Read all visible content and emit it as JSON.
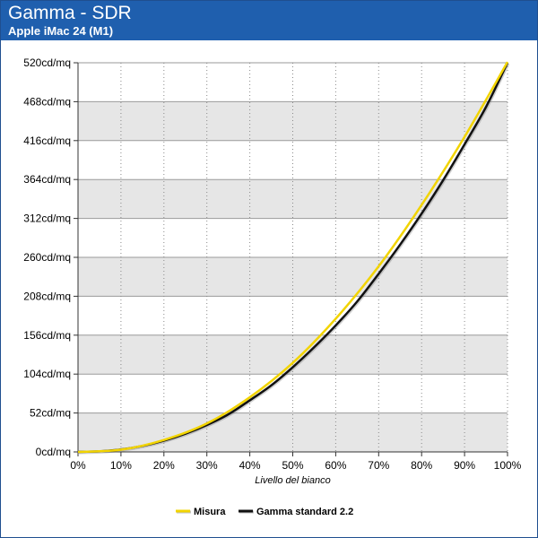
{
  "header": {
    "title": "Gamma - SDR",
    "subtitle": "Apple iMac 24 (M1)"
  },
  "colors": {
    "header_bg": "#1f5fae",
    "band": "#e6e6e6",
    "measure": "#f2d400",
    "standard": "#111111"
  },
  "chart_data": {
    "type": "line",
    "title": "Gamma - SDR",
    "subtitle": "Apple iMac 24 (M1)",
    "xlabel": "Livello del bianco",
    "ylabel": "",
    "xlim": [
      0,
      100
    ],
    "ylim": [
      0,
      520
    ],
    "x_ticks": [
      0,
      10,
      20,
      30,
      40,
      50,
      60,
      70,
      80,
      90,
      100
    ],
    "x_tick_labels": [
      "0%",
      "10%",
      "20%",
      "30%",
      "40%",
      "50%",
      "60%",
      "70%",
      "80%",
      "90%",
      "100%"
    ],
    "y_ticks": [
      0,
      52,
      104,
      156,
      208,
      260,
      312,
      364,
      416,
      468,
      520
    ],
    "y_tick_labels": [
      "0cd/mq",
      "52cd/mq",
      "104cd/mq",
      "156cd/mq",
      "208cd/mq",
      "260cd/mq",
      "312cd/mq",
      "364cd/mq",
      "416cd/mq",
      "468cd/mq",
      "520cd/mq"
    ],
    "legend": "bottom",
    "series": [
      {
        "name": "Misura",
        "x": [
          0,
          10,
          20,
          30,
          40,
          50,
          60,
          70,
          80,
          90,
          100
        ],
        "values": [
          0,
          3,
          16,
          38,
          73,
          119,
          178,
          248,
          330,
          421,
          521
        ]
      },
      {
        "name": "Gamma standard 2.2",
        "x": [
          0,
          5,
          10,
          15,
          20,
          25,
          30,
          35,
          40,
          45,
          50,
          55,
          60,
          65,
          70,
          75,
          80,
          85,
          90,
          95,
          100
        ],
        "values": [
          0,
          0.7,
          3.3,
          8.0,
          15.0,
          24.3,
          36.0,
          50.2,
          69.0,
          89.0,
          113.2,
          140.0,
          169.0,
          201.0,
          238.0,
          277.0,
          318.5,
          363.0,
          411.0,
          461.0,
          520.0
        ]
      }
    ]
  }
}
